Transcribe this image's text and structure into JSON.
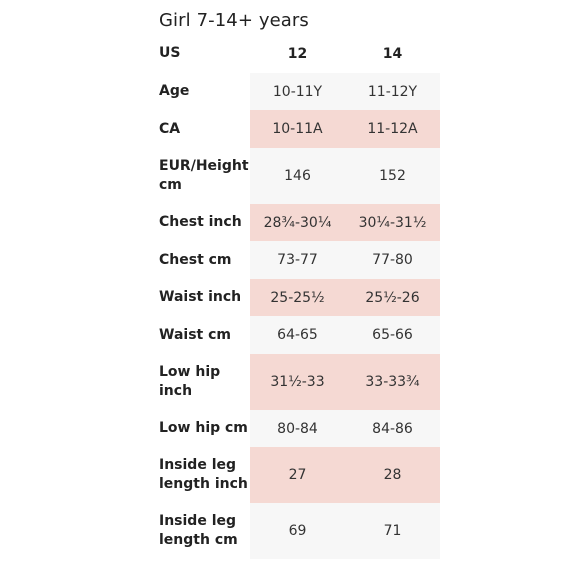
{
  "title": "Girl 7-14+ years",
  "header": {
    "label": "US",
    "c1": "12",
    "c2": "14"
  },
  "rows": [
    {
      "label": "Age",
      "c1": "10-11Y",
      "c2": "11-12Y",
      "shaded": false
    },
    {
      "label": "CA",
      "c1": "10-11A",
      "c2": "11-12A",
      "shaded": true
    },
    {
      "label": "EUR/Height cm",
      "c1": "146",
      "c2": "152",
      "shaded": false
    },
    {
      "label": "Chest inch",
      "c1": "28¾-30¼",
      "c2": "30¼-31½",
      "shaded": true
    },
    {
      "label": "Chest cm",
      "c1": "73-77",
      "c2": "77-80",
      "shaded": false
    },
    {
      "label": "Waist inch",
      "c1": "25-25½",
      "c2": "25½-26",
      "shaded": true
    },
    {
      "label": "Waist cm",
      "c1": "64-65",
      "c2": "65-66",
      "shaded": false
    },
    {
      "label": "Low hip inch",
      "c1": "31½-33",
      "c2": "33-33¾",
      "shaded": true
    },
    {
      "label": "Low hip cm",
      "c1": "80-84",
      "c2": "84-86",
      "shaded": false
    },
    {
      "label": "Inside leg length inch",
      "c1": "27",
      "c2": "28",
      "shaded": true
    },
    {
      "label": "Inside leg length cm",
      "c1": "69",
      "c2": "71",
      "shaded": false
    }
  ],
  "colors": {
    "shaded_row": "#f5d9d3",
    "plain_row": "#f7f7f7"
  }
}
